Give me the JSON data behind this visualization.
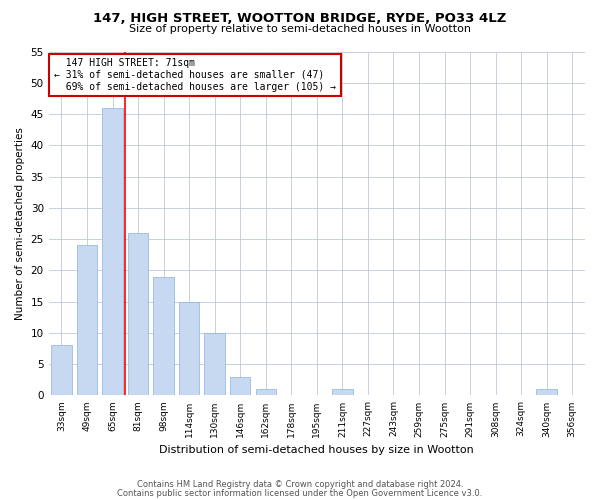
{
  "title": "147, HIGH STREET, WOOTTON BRIDGE, RYDE, PO33 4LZ",
  "subtitle": "Size of property relative to semi-detached houses in Wootton",
  "xlabel": "Distribution of semi-detached houses by size in Wootton",
  "ylabel": "Number of semi-detached properties",
  "bins": [
    "33sqm",
    "49sqm",
    "65sqm",
    "81sqm",
    "98sqm",
    "114sqm",
    "130sqm",
    "146sqm",
    "162sqm",
    "178sqm",
    "195sqm",
    "211sqm",
    "227sqm",
    "243sqm",
    "259sqm",
    "275sqm",
    "291sqm",
    "308sqm",
    "324sqm",
    "340sqm",
    "356sqm"
  ],
  "values": [
    8,
    24,
    46,
    26,
    19,
    15,
    10,
    3,
    1,
    0,
    0,
    1,
    0,
    0,
    0,
    0,
    0,
    0,
    0,
    1,
    0
  ],
  "bar_color": "#c6d9f0",
  "bar_edge_color": "#8db3d9",
  "property_bin_index": 2,
  "red_line_label": "147 HIGH STREET: 71sqm",
  "smaller_pct": 31,
  "smaller_count": 47,
  "larger_pct": 69,
  "larger_count": 105,
  "ylim": [
    0,
    55
  ],
  "yticks": [
    0,
    5,
    10,
    15,
    20,
    25,
    30,
    35,
    40,
    45,
    50,
    55
  ],
  "annotation_box_color": "#ffffff",
  "annotation_box_edge": "#cc0000",
  "footer1": "Contains HM Land Registry data © Crown copyright and database right 2024.",
  "footer2": "Contains public sector information licensed under the Open Government Licence v3.0."
}
